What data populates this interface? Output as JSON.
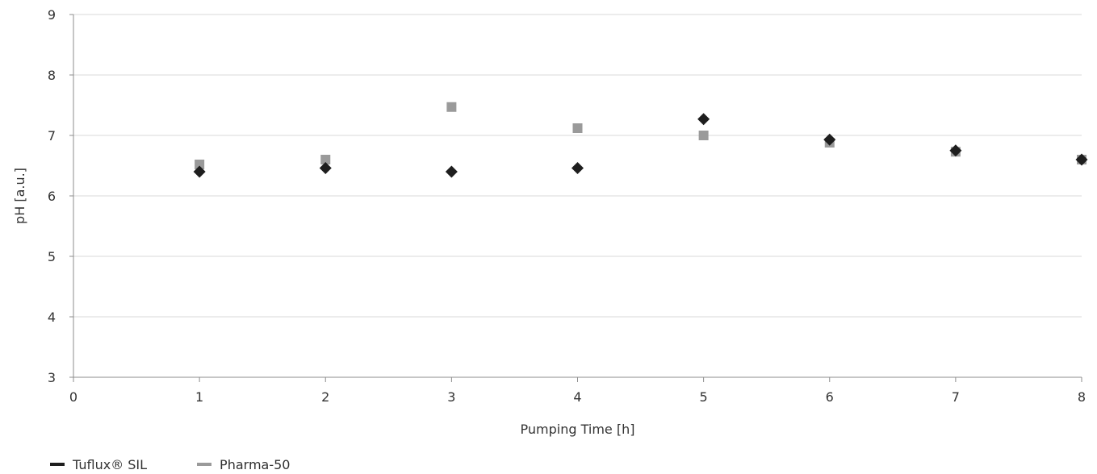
{
  "chart_data": {
    "type": "scatter",
    "title": "",
    "xlabel": "Pumping Time [h]",
    "ylabel": "pH [a.u.]",
    "xlim": [
      0,
      8
    ],
    "ylim": [
      3,
      9
    ],
    "x_ticks": [
      0,
      1,
      2,
      3,
      4,
      5,
      6,
      7,
      8
    ],
    "y_ticks": [
      3,
      4,
      5,
      6,
      7,
      8,
      9
    ],
    "grid": "horizontal",
    "legend_position": "bottom-left",
    "series": [
      {
        "name": "Tuflux® SIL",
        "marker": "diamond",
        "color": "#1e1e1e",
        "x": [
          1,
          2,
          3,
          4,
          5,
          6,
          7,
          8
        ],
        "y": [
          6.4,
          6.46,
          6.4,
          6.46,
          7.27,
          6.93,
          6.75,
          6.6
        ]
      },
      {
        "name": "Pharma-50",
        "marker": "square",
        "color": "#9a9a9a",
        "x": [
          1,
          2,
          3,
          4,
          5,
          6,
          7,
          8
        ],
        "y": [
          6.52,
          6.6,
          7.47,
          7.12,
          7.0,
          6.88,
          6.73,
          6.6
        ]
      }
    ]
  }
}
